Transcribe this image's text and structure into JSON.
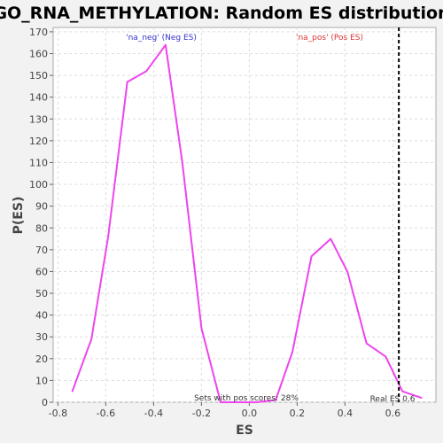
{
  "chart_data": {
    "type": "line",
    "title": "GO_RNA_METHYLATION: Random ES distribution",
    "xlabel": "ES",
    "ylabel": "P(ES)",
    "xlim": [
      -0.82,
      0.78
    ],
    "ylim": [
      0,
      172
    ],
    "xticks": [
      "-0.8",
      "-0.6",
      "-0.4",
      "-0.2",
      "0.0",
      "0.2",
      "0.4",
      "0.6"
    ],
    "yticks": [
      "0",
      "10",
      "20",
      "30",
      "40",
      "50",
      "60",
      "70",
      "80",
      "90",
      "100",
      "110",
      "120",
      "130",
      "140",
      "150",
      "160",
      "170"
    ],
    "grid": true,
    "series": [
      {
        "color": "#ee44ee",
        "x": [
          -0.74,
          -0.66,
          -0.59,
          -0.51,
          -0.43,
          -0.35,
          -0.28,
          -0.2,
          -0.12,
          -0.05,
          0.03,
          0.11,
          0.18,
          0.26,
          0.34,
          0.41,
          0.49,
          0.57,
          0.64,
          0.72
        ],
        "y": [
          5,
          29,
          76,
          147,
          152,
          164,
          110,
          34,
          0,
          0,
          0,
          1,
          23,
          67,
          75,
          60,
          27,
          21,
          5,
          2
        ]
      }
    ],
    "annotations": {
      "neg_label": "'na_neg' (Neg ES)",
      "pos_label": "'na_pos' (Pos ES)",
      "sets_with_pos": "Sets with pos scores: 28%",
      "real_es_label": "Real ES 0.6",
      "real_es_value": 0.625
    },
    "colors": {
      "line": "#ee44ee",
      "neg_label": "#3333cc",
      "pos_label": "#dd3333",
      "grid": "#dddddd",
      "plot_bg": "#ffffff"
    }
  }
}
